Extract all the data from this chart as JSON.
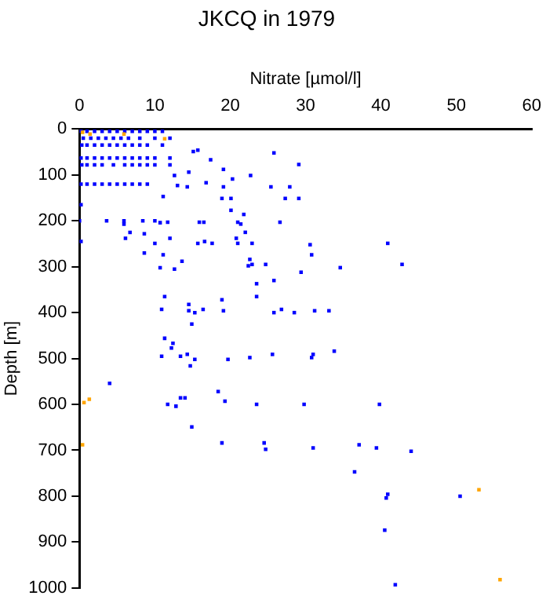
{
  "chart_data": {
    "type": "scatter",
    "title": "JKCQ in 1979",
    "xlabel": "Nitrate [µmol/l]",
    "ylabel": "Depth [m]",
    "xlim": [
      0,
      60
    ],
    "xticks": [
      0,
      10,
      20,
      30,
      40,
      50,
      60
    ],
    "ylim": [
      1000,
      0
    ],
    "yticks": [
      0,
      100,
      200,
      300,
      400,
      500,
      600,
      700,
      800,
      900,
      1000
    ],
    "grid": false,
    "legend": false,
    "marker": "square",
    "series": [
      {
        "color": "#0000ff",
        "x": [
          0.2,
          1,
          2,
          3,
          4,
          5,
          6,
          7,
          8,
          9,
          10,
          11,
          0.5,
          1.5,
          2.5,
          3.5,
          4.5,
          5.5,
          6.5,
          8,
          10,
          12,
          0.3,
          1,
          2,
          3,
          4,
          5,
          6,
          7,
          8,
          9,
          11,
          15.1,
          15.7,
          17.4,
          25.8,
          29.1,
          0.2,
          1,
          2,
          3,
          4,
          5,
          6,
          7,
          8,
          9,
          10,
          12,
          14.5,
          12.6,
          19.1,
          20.3,
          22.7,
          0.3,
          1,
          2,
          3,
          4.5,
          6,
          7,
          8,
          9,
          10,
          12,
          13,
          14.3,
          16.8,
          19.1,
          25.4,
          27.9,
          0.2,
          1,
          2,
          3,
          4,
          5,
          6,
          7,
          8,
          9,
          11.1,
          18.9,
          20.1,
          27.3,
          29.1,
          0.2,
          20.1,
          21.8,
          0,
          3.6,
          5.9,
          5.9,
          6.7,
          8.4,
          8.6,
          10,
          10.7,
          11.7,
          15.9,
          16.5,
          21,
          21.4,
          22,
          26.6,
          0.2,
          6.1,
          10,
          12,
          15.7,
          16.6,
          17.6,
          20.8,
          21,
          22.9,
          30.6,
          40.9,
          30.8,
          42.8,
          29.4,
          34.6,
          10.7,
          12.6,
          13.6,
          11.1,
          8.6,
          22.6,
          22.9,
          22.4,
          24.7,
          25.8,
          23.5,
          23.5,
          18.9,
          14.5,
          14.5,
          15.3,
          16.4,
          11.3,
          10.9,
          19.1,
          25.8,
          26.8,
          28.5,
          31.2,
          33.1,
          14.9,
          11.3,
          12.4,
          12.2,
          10.9,
          13.4,
          14.3,
          15.3,
          19.7,
          22.6,
          25.6,
          33.8,
          31,
          30.8,
          14.7,
          4,
          13.4,
          14,
          18.4,
          19.3,
          11.7,
          12.8,
          23.5,
          29.8,
          39.8,
          14.9,
          18.9,
          24.5,
          24.7,
          31,
          37.1,
          39.4,
          44,
          36.5,
          40.9,
          40.7,
          50.5,
          40.5,
          41.9
        ],
        "values": [
          5,
          5,
          5,
          5,
          5,
          5,
          5,
          5,
          5,
          5,
          5,
          5,
          20,
          20,
          20,
          20,
          20,
          20,
          20,
          20,
          20,
          20,
          35,
          35,
          35,
          35,
          35,
          35,
          35,
          35,
          35,
          35,
          35,
          49,
          46,
          67,
          52,
          77,
          63,
          63,
          63,
          63,
          63,
          63,
          63,
          63,
          63,
          63,
          63,
          63,
          94,
          101,
          88,
          109,
          101,
          78,
          78,
          78,
          78,
          78,
          78,
          78,
          78,
          78,
          78,
          78,
          123,
          126,
          117,
          126,
          126,
          126,
          120,
          120,
          120,
          120,
          120,
          120,
          120,
          120,
          120,
          120,
          147,
          151,
          151,
          151,
          151,
          165,
          177,
          186,
          200,
          200,
          200,
          207,
          225,
          200,
          228,
          200,
          204,
          203,
          203,
          203,
          203,
          207,
          225,
          203,
          245,
          238,
          249,
          238,
          249,
          245,
          249,
          238,
          249,
          249,
          252,
          249,
          274,
          295,
          312,
          302,
          302,
          305,
          288,
          274,
          270,
          284,
          295,
          298,
          295,
          330,
          337,
          365,
          372,
          382,
          396,
          400,
          393,
          365,
          393,
          396,
          400,
          393,
          400,
          396,
          396,
          425,
          456,
          467,
          477,
          495,
          495,
          491,
          502,
          502,
          498,
          491,
          484,
          491,
          498,
          516,
          554,
          586,
          586,
          572,
          593,
          600,
          604,
          600,
          600,
          600,
          649,
          684,
          684,
          698,
          695,
          688,
          695,
          702,
          747,
          796,
          804,
          800,
          874,
          993
        ]
      },
      {
        "color": "#ffa500",
        "x": [
          0.4,
          1.4,
          5.9,
          11.3,
          1.3,
          0.6,
          0.4,
          53,
          55.8
        ],
        "values": [
          7,
          11,
          11,
          21,
          589,
          596,
          688,
          786,
          982
        ]
      }
    ]
  }
}
